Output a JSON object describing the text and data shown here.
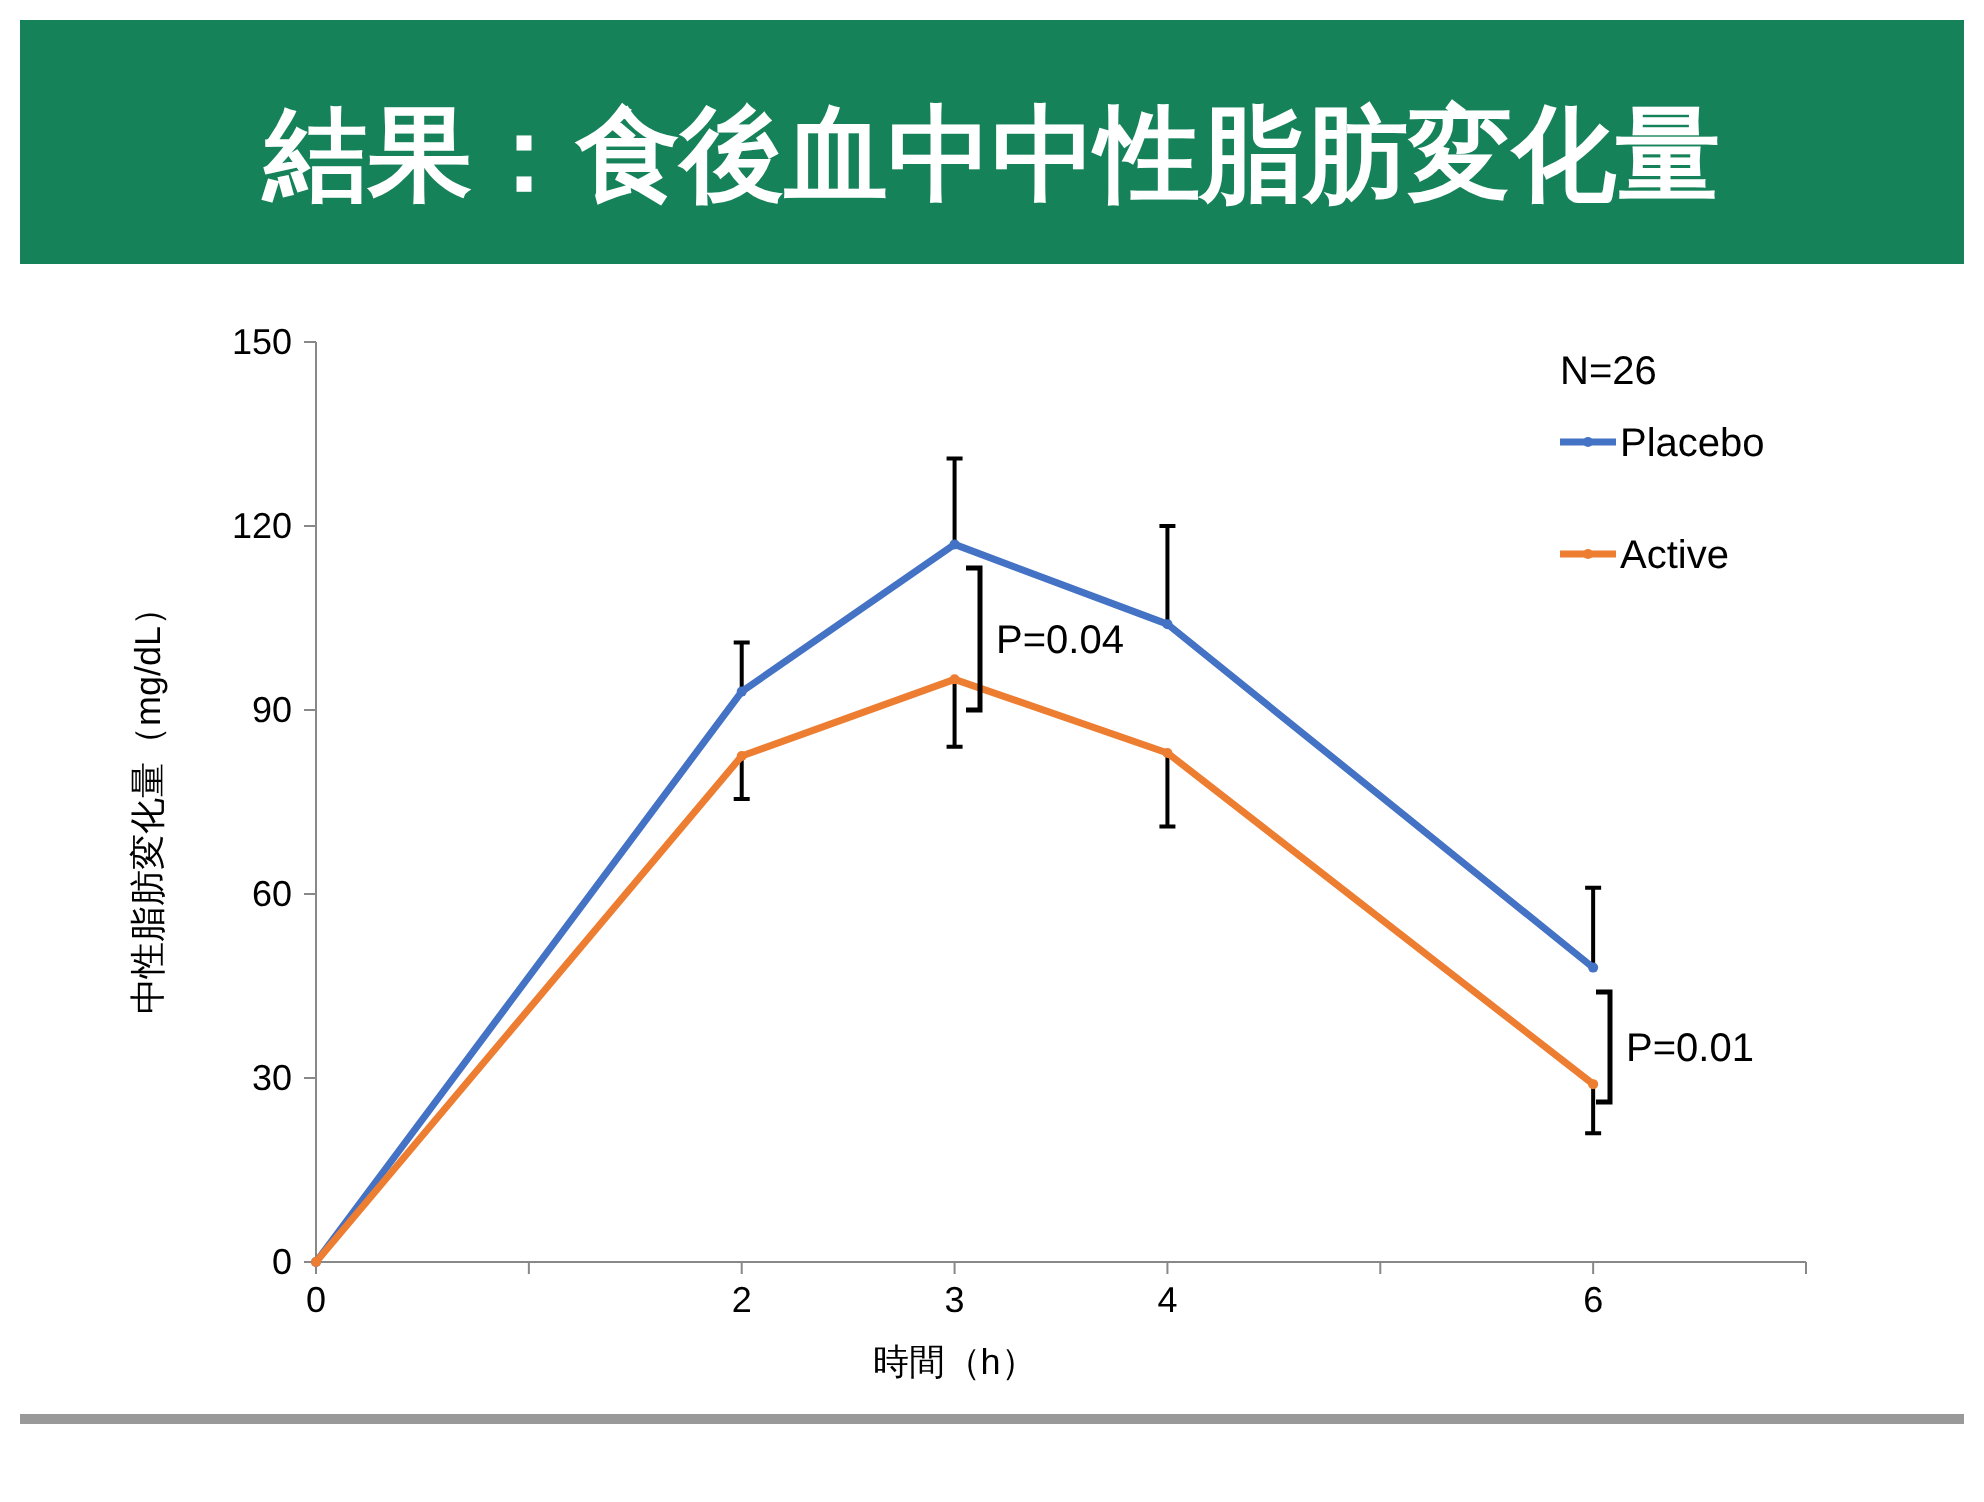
{
  "chart_data": {
    "type": "line",
    "title": "結果：食後血中中性脂肪変化量",
    "xlabel": "時間（h）",
    "ylabel": "中性脂肪変化量（mg/dL）",
    "legend_title": "N=26",
    "x": [
      0,
      2,
      3,
      4,
      6
    ],
    "series": [
      {
        "name": "Placebo",
        "color": "#4472c4",
        "values": [
          0,
          93,
          117,
          104,
          48
        ],
        "errors": [
          null,
          [
            93,
            101
          ],
          [
            117,
            131
          ],
          [
            104,
            120
          ],
          [
            48,
            61
          ]
        ]
      },
      {
        "name": "Active",
        "color": "#ed7d31",
        "values": [
          0,
          82.5,
          95,
          83,
          29
        ],
        "errors": [
          null,
          [
            75.5,
            82.5
          ],
          [
            84,
            95
          ],
          [
            71,
            83
          ],
          [
            21,
            29
          ]
        ]
      }
    ],
    "xlim": [
      0,
      7
    ],
    "xticks": [
      0,
      {
        "value": 1,
        "label": null
      },
      2,
      3,
      4,
      {
        "value": 5,
        "label": null
      },
      6,
      {
        "value": 7,
        "label": null
      }
    ],
    "ylim": [
      0,
      150
    ],
    "yticks": [
      0,
      30,
      60,
      90,
      120,
      150
    ],
    "annotations": [
      "P=0.04",
      "P=0.01"
    ],
    "marker": "circle",
    "legend": "top right",
    "grid": false
  }
}
